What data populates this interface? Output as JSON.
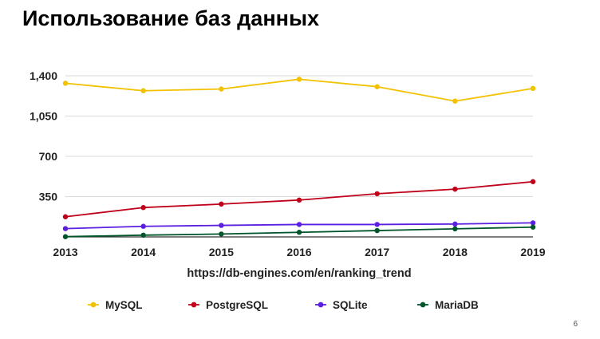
{
  "slide": {
    "title": "Использование баз данных",
    "page_number": "6"
  },
  "chart_data": {
    "type": "line",
    "title": "",
    "xlabel": "https://db-engines.com/en/ranking_trend",
    "ylabel": "",
    "x": [
      "2013",
      "2014",
      "2015",
      "2016",
      "2017",
      "2018",
      "2019"
    ],
    "ylim": [
      0,
      1400
    ],
    "yticks": [
      350,
      700,
      1050,
      1400
    ],
    "ytick_labels": [
      "350",
      "700",
      "1,050",
      "1,400"
    ],
    "grid": true,
    "legend_position": "bottom",
    "series": [
      {
        "name": "MySQL",
        "color": "#F2C200",
        "values": [
          1335,
          1270,
          1285,
          1370,
          1305,
          1180,
          1290
        ]
      },
      {
        "name": "PostgreSQL",
        "color": "#C0001A",
        "values": [
          175,
          255,
          285,
          320,
          375,
          415,
          480
        ]
      },
      {
        "name": "SQLite",
        "color": "#5A1FE0",
        "values": [
          72,
          92,
          100,
          108,
          108,
          112,
          122
        ]
      },
      {
        "name": "MariaDB",
        "color": "#00552A",
        "values": [
          2,
          15,
          25,
          40,
          55,
          70,
          85
        ]
      }
    ]
  }
}
